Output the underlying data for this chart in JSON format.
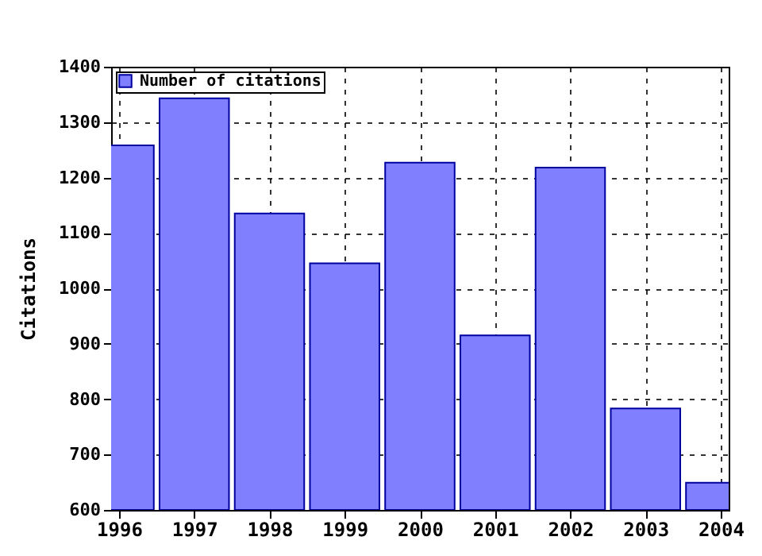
{
  "chart_data": {
    "type": "bar",
    "ylabel": "Citations",
    "x": [
      1996,
      1997,
      1998,
      1999,
      2000,
      2001,
      2002,
      2003,
      2004
    ],
    "series": [
      {
        "name": "Number of citations",
        "color": "#8080ff",
        "values": [
          1258,
          1343,
          1135,
          1045,
          1227,
          915,
          1218,
          783,
          649
        ]
      }
    ],
    "xlim": [
      1996,
      2004
    ],
    "xticks": [
      1996,
      1997,
      1998,
      1999,
      2000,
      2001,
      2002,
      2003,
      2004
    ],
    "ylim": [
      600,
      1400
    ],
    "yticks": [
      600,
      700,
      800,
      900,
      1000,
      1100,
      1200,
      1300,
      1400
    ],
    "grid": true,
    "legend": "top left"
  }
}
